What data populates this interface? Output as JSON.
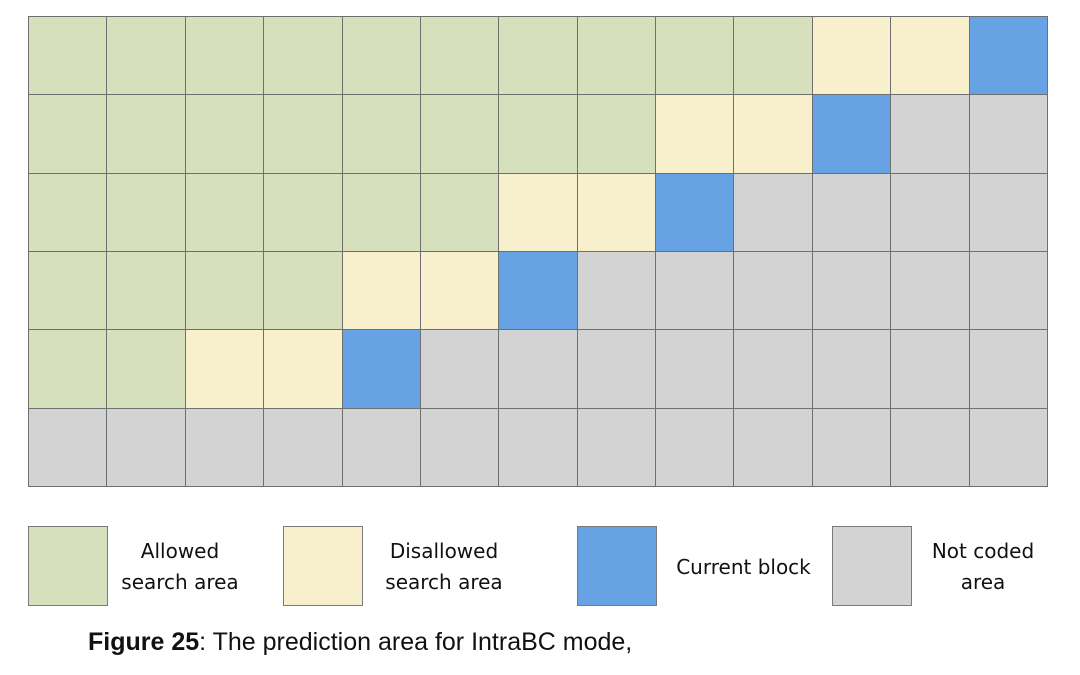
{
  "grid": {
    "rows": [
      [
        "allowed",
        "allowed",
        "allowed",
        "allowed",
        "allowed",
        "allowed",
        "allowed",
        "allowed",
        "allowed",
        "allowed",
        "disallowed",
        "disallowed",
        "current"
      ],
      [
        "allowed",
        "allowed",
        "allowed",
        "allowed",
        "allowed",
        "allowed",
        "allowed",
        "allowed",
        "disallowed",
        "disallowed",
        "current",
        "not-coded",
        "not-coded"
      ],
      [
        "allowed",
        "allowed",
        "allowed",
        "allowed",
        "allowed",
        "allowed",
        "disallowed",
        "disallowed",
        "current",
        "not-coded",
        "not-coded",
        "not-coded",
        "not-coded"
      ],
      [
        "allowed",
        "allowed",
        "allowed",
        "allowed",
        "disallowed",
        "disallowed",
        "current",
        "not-coded",
        "not-coded",
        "not-coded",
        "not-coded",
        "not-coded",
        "not-coded"
      ],
      [
        "allowed",
        "allowed",
        "disallowed",
        "disallowed",
        "current",
        "not-coded",
        "not-coded",
        "not-coded",
        "not-coded",
        "not-coded",
        "not-coded",
        "not-coded",
        "not-coded"
      ],
      [
        "not-coded",
        "not-coded",
        "not-coded",
        "not-coded",
        "not-coded",
        "not-coded",
        "not-coded",
        "not-coded",
        "not-coded",
        "not-coded",
        "not-coded",
        "not-coded",
        "not-coded"
      ]
    ]
  },
  "colors": {
    "allowed": "#d6e0bd",
    "disallowed": "#f8f0cd",
    "current": "#67a2e4",
    "not-coded": "#d3d3d3"
  },
  "legend": {
    "allowed": "Allowed\nsearch area",
    "disallowed": "Disallowed\nsearch area",
    "current": "Current block",
    "not_coded": "Not coded\narea"
  },
  "caption": {
    "label": "Figure 25",
    "text": ": The prediction area for IntraBC mode,"
  }
}
